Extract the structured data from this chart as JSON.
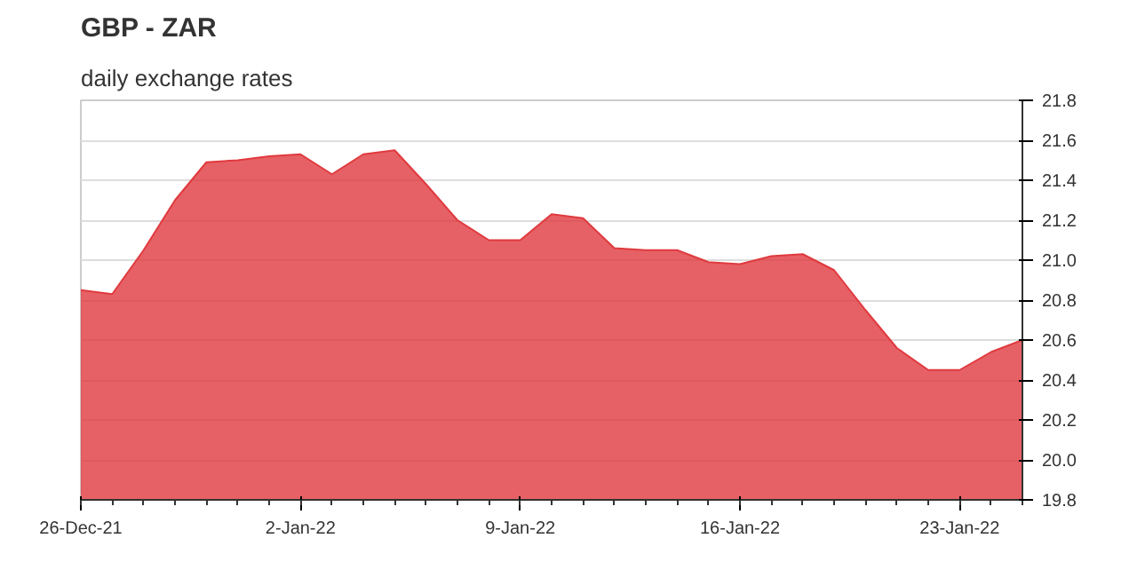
{
  "chart_data": {
    "type": "area",
    "title": "GBP - ZAR",
    "subtitle": "daily exchange rates",
    "categories": [
      "26-Dec-21",
      null,
      null,
      null,
      null,
      null,
      null,
      "2-Jan-22",
      null,
      null,
      null,
      null,
      null,
      null,
      "9-Jan-22",
      null,
      null,
      null,
      null,
      null,
      null,
      "16-Jan-22",
      null,
      null,
      null,
      null,
      null,
      null,
      "23-Jan-22",
      null,
      null
    ],
    "series": [
      {
        "color": "#e03a3e",
        "values": [
          20.85,
          20.83,
          21.05,
          21.3,
          21.49,
          21.5,
          21.52,
          21.53,
          21.43,
          21.53,
          21.55,
          21.38,
          21.2,
          21.1,
          21.1,
          21.23,
          21.21,
          21.06,
          21.05,
          21.05,
          20.99,
          20.98,
          21.02,
          21.03,
          20.95,
          20.75,
          20.56,
          20.45,
          20.45,
          20.54,
          20.6
        ]
      }
    ],
    "ylim": [
      19.8,
      21.8
    ],
    "yticks": [
      {
        "value": 19.8,
        "label": "19.8"
      },
      {
        "value": 20.0,
        "label": "20.0"
      },
      {
        "value": 20.2,
        "label": "20.2"
      },
      {
        "value": 20.4,
        "label": "20.4"
      },
      {
        "value": 20.6,
        "label": "20.6"
      },
      {
        "value": 20.8,
        "label": "20.8"
      },
      {
        "value": 21.0,
        "label": "21.0"
      },
      {
        "value": 21.2,
        "label": "21.2"
      },
      {
        "value": 21.4,
        "label": "21.4"
      },
      {
        "value": 21.6,
        "label": "21.6"
      },
      {
        "value": 21.8,
        "label": "21.8"
      }
    ],
    "grid": true
  }
}
